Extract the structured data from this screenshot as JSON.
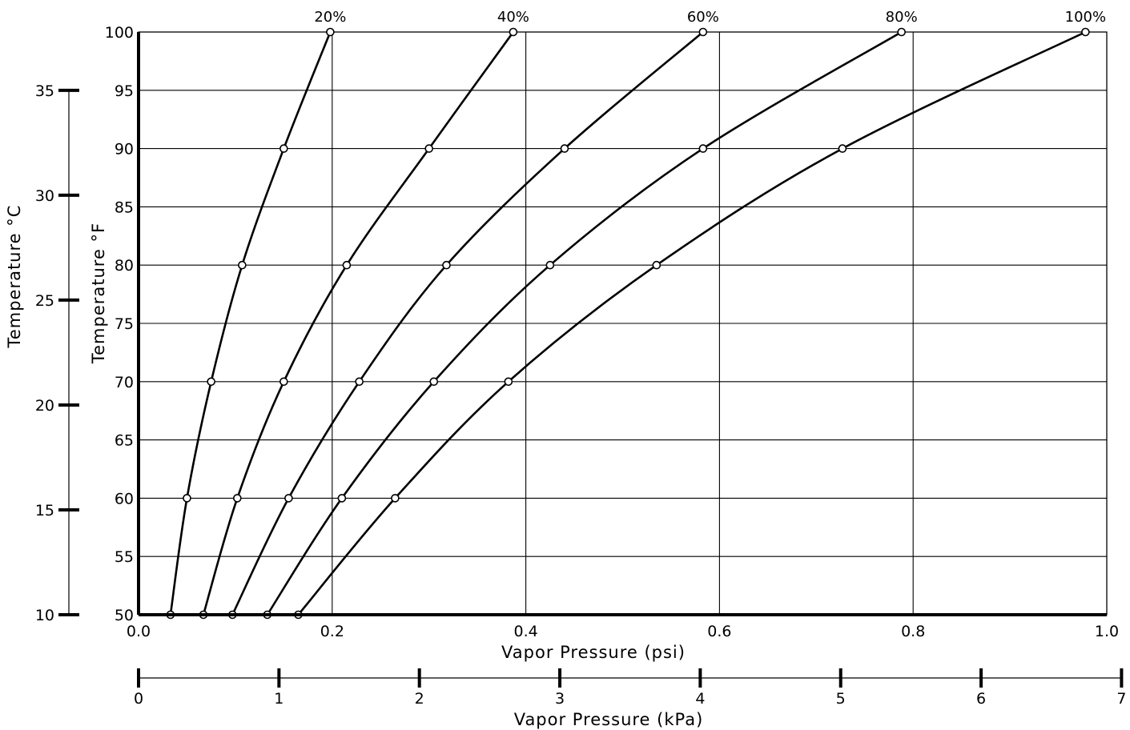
{
  "chart_data": {
    "type": "line",
    "xlabel": "Vapor Pressure (psi)",
    "ylabel": "Temperature °F",
    "xlim": [
      0.0,
      1.0
    ],
    "ylim": [
      50,
      100
    ],
    "x_ticks": [
      "0.0",
      "0.2",
      "0.4",
      "0.6",
      "0.8",
      "1.0"
    ],
    "y_ticks": [
      "50",
      "55",
      "60",
      "65",
      "70",
      "75",
      "80",
      "85",
      "90",
      "95",
      "100"
    ],
    "grid": true,
    "series": [
      {
        "name": "20%",
        "points": [
          [
            0.033,
            50
          ],
          [
            0.05,
            60
          ],
          [
            0.075,
            70
          ],
          [
            0.107,
            80
          ],
          [
            0.15,
            90
          ],
          [
            0.198,
            100
          ]
        ]
      },
      {
        "name": "40%",
        "points": [
          [
            0.067,
            50
          ],
          [
            0.102,
            60
          ],
          [
            0.15,
            70
          ],
          [
            0.215,
            80
          ],
          [
            0.3,
            90
          ],
          [
            0.387,
            100
          ]
        ]
      },
      {
        "name": "60%",
        "points": [
          [
            0.097,
            50
          ],
          [
            0.155,
            60
          ],
          [
            0.228,
            70
          ],
          [
            0.318,
            80
          ],
          [
            0.44,
            90
          ],
          [
            0.583,
            100
          ]
        ]
      },
      {
        "name": "80%",
        "points": [
          [
            0.133,
            50
          ],
          [
            0.21,
            60
          ],
          [
            0.305,
            70
          ],
          [
            0.425,
            80
          ],
          [
            0.583,
            90
          ],
          [
            0.788,
            100
          ]
        ]
      },
      {
        "name": "100%",
        "points": [
          [
            0.165,
            50
          ],
          [
            0.265,
            60
          ],
          [
            0.382,
            70
          ],
          [
            0.535,
            80
          ],
          [
            0.727,
            90
          ],
          [
            0.978,
            100
          ]
        ]
      }
    ],
    "secondary_y_axis": {
      "label": "Temperature °C",
      "lim": [
        10,
        37.78
      ],
      "ticks": [
        "10",
        "15",
        "20",
        "25",
        "30",
        "35"
      ]
    },
    "secondary_x_axis": {
      "label": "Vapor Pressure (kPa)",
      "lim": [
        0,
        6.895
      ],
      "ticks": [
        "0",
        "1",
        "2",
        "3",
        "4",
        "5",
        "6",
        "7"
      ]
    }
  }
}
